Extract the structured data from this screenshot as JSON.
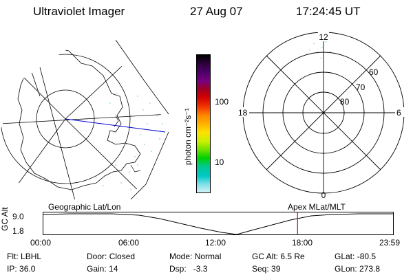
{
  "header": {
    "instrument": "Ultraviolet Imager",
    "date": "27 Aug 07",
    "time": "17:24:45 UT"
  },
  "colorbar": {
    "unit": "photon cm⁻²s⁻¹",
    "ticks": [
      "100",
      "10"
    ],
    "colors": [
      "#000000",
      "#2b0038",
      "#50006a",
      "#780082",
      "#a00020",
      "#d40000",
      "#f23a00",
      "#ff8800",
      "#ffb000",
      "#ffe000",
      "#c8f000",
      "#70e000",
      "#00d000",
      "#00c890",
      "#00c8c8",
      "#7ee0e8",
      "#d8f0f4"
    ]
  },
  "left_map": {
    "projection": "Geographic Lat/Lon"
  },
  "right_map": {
    "projection": "Apex MLat/MLT",
    "mlt_labels": {
      "top": "12",
      "left": "18",
      "right": "6",
      "bottom": "0"
    },
    "lat_labels": [
      "60",
      "70",
      "80"
    ]
  },
  "timeline": {
    "ylabel": "GC Alt",
    "yticks": [
      "9.0",
      "1.8"
    ],
    "xticks": [
      "00:00",
      "06:00",
      "12:00",
      "18:00",
      "23:59"
    ],
    "marker_time": "17:24:45",
    "marker_color": "#e00000"
  },
  "status": {
    "flt_label": "Flt:",
    "flt_value": "LBHL",
    "ip_label": "IP:",
    "ip_value": "36.0",
    "door_label": "Door:",
    "door_value": "Closed",
    "gain_label": "Gain:",
    "gain_value": "14",
    "mode_label": "Mode:",
    "mode_value": "Normal",
    "dsp_label": "Dsp:",
    "dsp_value": "-3.3",
    "gcalt_label": "GC Alt:",
    "gcalt_value": "6.5 Re",
    "seq_label": "Seq:",
    "seq_value": "39",
    "glat_label": "GLat:",
    "glat_value": "-80.5",
    "glon_label": "GLon:",
    "glon_value": "273.8"
  }
}
